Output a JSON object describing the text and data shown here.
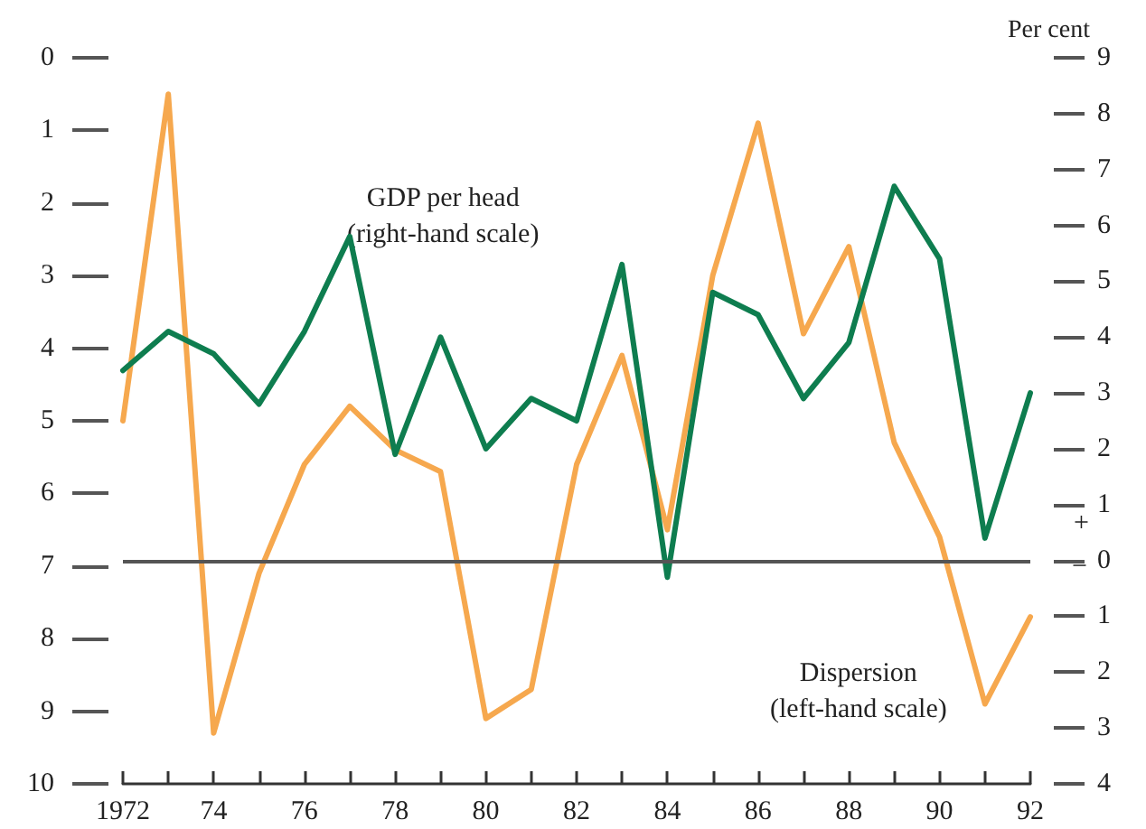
{
  "chart_data": {
    "type": "line",
    "x": [
      1972,
      1973,
      1974,
      1975,
      1976,
      1977,
      1978,
      1979,
      1980,
      1981,
      1982,
      1983,
      1984,
      1985,
      1986,
      1987,
      1988,
      1989,
      1990,
      1991,
      1992
    ],
    "series": [
      {
        "color": "#f6a84e",
        "axis": "y",
        "values": [
          5.0,
          0.5,
          9.3,
          7.1,
          5.6,
          4.8,
          5.4,
          5.7,
          9.1,
          8.7,
          5.6,
          4.1,
          6.5,
          3.0,
          0.9,
          3.8,
          2.6,
          5.3,
          6.6,
          8.9,
          7.7
        ]
      },
      {
        "color": "#0e7d4f",
        "axis": "y2",
        "values": [
          3.4,
          4.1,
          3.7,
          2.8,
          4.1,
          5.8,
          1.9,
          4.0,
          2.0,
          2.9,
          2.5,
          5.3,
          -0.3,
          4.8,
          4.4,
          2.9,
          3.9,
          6.7,
          5.4,
          0.4,
          3.0
        ]
      }
    ],
    "y2label": "Per cent",
    "annotations": [
      "GDP per head\n(right-hand scale)",
      "Dispersion\n(left-hand scale)",
      "+",
      "−"
    ],
    "xlim": [
      1972,
      1992
    ],
    "xticks": [
      {
        "value": 1972,
        "label": "1972"
      },
      {
        "value": 1973,
        "label": null
      },
      {
        "value": 1974,
        "label": "74"
      },
      {
        "value": 1975,
        "label": null
      },
      {
        "value": 1976,
        "label": "76"
      },
      {
        "value": 1977,
        "label": null
      },
      {
        "value": 1978,
        "label": "78"
      },
      {
        "value": 1979,
        "label": null
      },
      {
        "value": 1980,
        "label": "80"
      },
      {
        "value": 1981,
        "label": null
      },
      {
        "value": 1982,
        "label": "82"
      },
      {
        "value": 1983,
        "label": null
      },
      {
        "value": 1984,
        "label": "84"
      },
      {
        "value": 1985,
        "label": null
      },
      {
        "value": 1986,
        "label": "86"
      },
      {
        "value": 1987,
        "label": null
      },
      {
        "value": 1988,
        "label": "88"
      },
      {
        "value": 1989,
        "label": null
      },
      {
        "value": 1990,
        "label": "90"
      },
      {
        "value": 1991,
        "label": null
      },
      {
        "value": 1992,
        "label": "92"
      }
    ],
    "ylim": [
      10,
      0
    ],
    "yticks": [
      0,
      1,
      2,
      3,
      4,
      5,
      6,
      7,
      8,
      9,
      10
    ],
    "y2lim": [
      -4,
      9
    ],
    "y2ticks": [
      {
        "value": -4,
        "label": "4"
      },
      {
        "value": -3,
        "label": "3"
      },
      {
        "value": -2,
        "label": "2"
      },
      {
        "value": -1,
        "label": "1"
      },
      0,
      1,
      2,
      3,
      4,
      5,
      6,
      7,
      8,
      9
    ],
    "ref_lines": [
      {
        "axis": "y2",
        "value": 0,
        "color": "#555555"
      }
    ],
    "grid": false,
    "marker": "none",
    "line_style": "solid"
  }
}
